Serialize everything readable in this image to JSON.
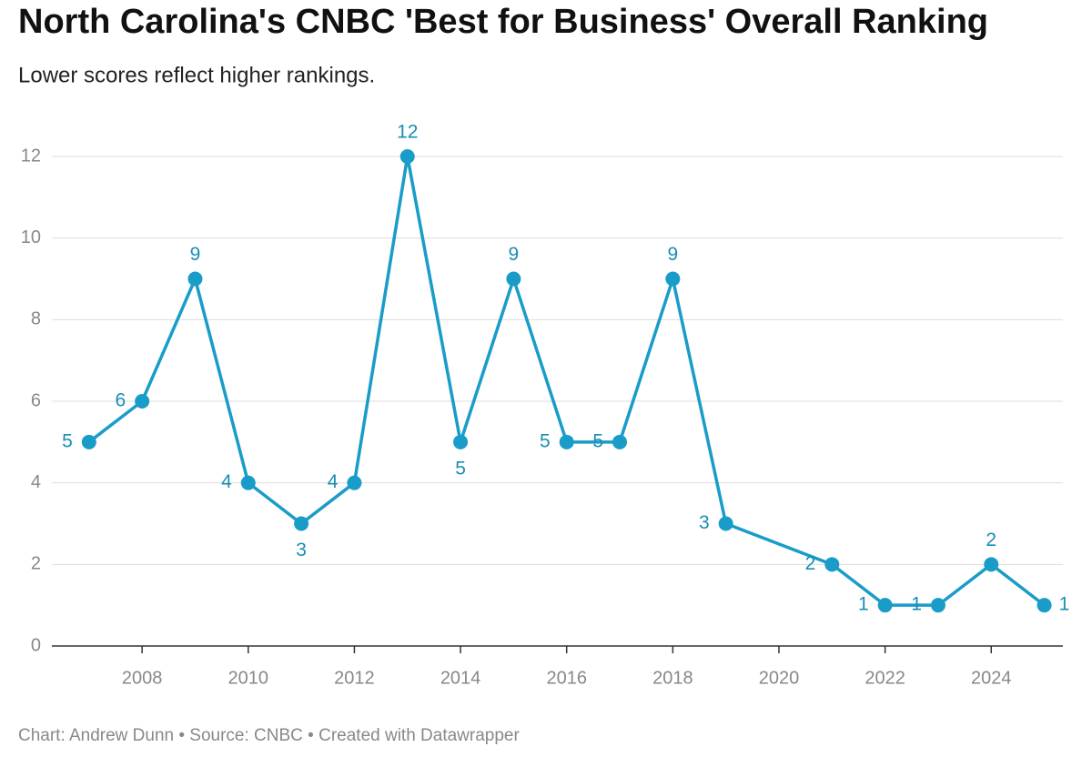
{
  "chart_data": {
    "type": "line",
    "title": "North Carolina's CNBC 'Best for Business' Overall Ranking",
    "subtitle": "Lower scores reflect higher rankings.",
    "footer": "Chart: Andrew Dunn • Source: CNBC • Created with Datawrapper",
    "x": [
      2007,
      2008,
      2009,
      2010,
      2011,
      2012,
      2013,
      2014,
      2015,
      2016,
      2017,
      2018,
      2019,
      2021,
      2022,
      2023,
      2024,
      2025
    ],
    "series": [
      {
        "name": "Overall Ranking",
        "color": "#1a9cc9",
        "values": [
          5,
          6,
          9,
          4,
          3,
          4,
          12,
          5,
          9,
          5,
          5,
          9,
          3,
          2,
          1,
          1,
          2,
          1
        ]
      }
    ],
    "xlim": [
      2006.3,
      2025.35
    ],
    "xticks": [
      2008,
      2010,
      2012,
      2014,
      2016,
      2018,
      2020,
      2022,
      2024
    ],
    "ylim": [
      0,
      12
    ],
    "yticks": [
      0,
      2,
      4,
      6,
      8,
      10,
      12
    ],
    "grid": true
  }
}
